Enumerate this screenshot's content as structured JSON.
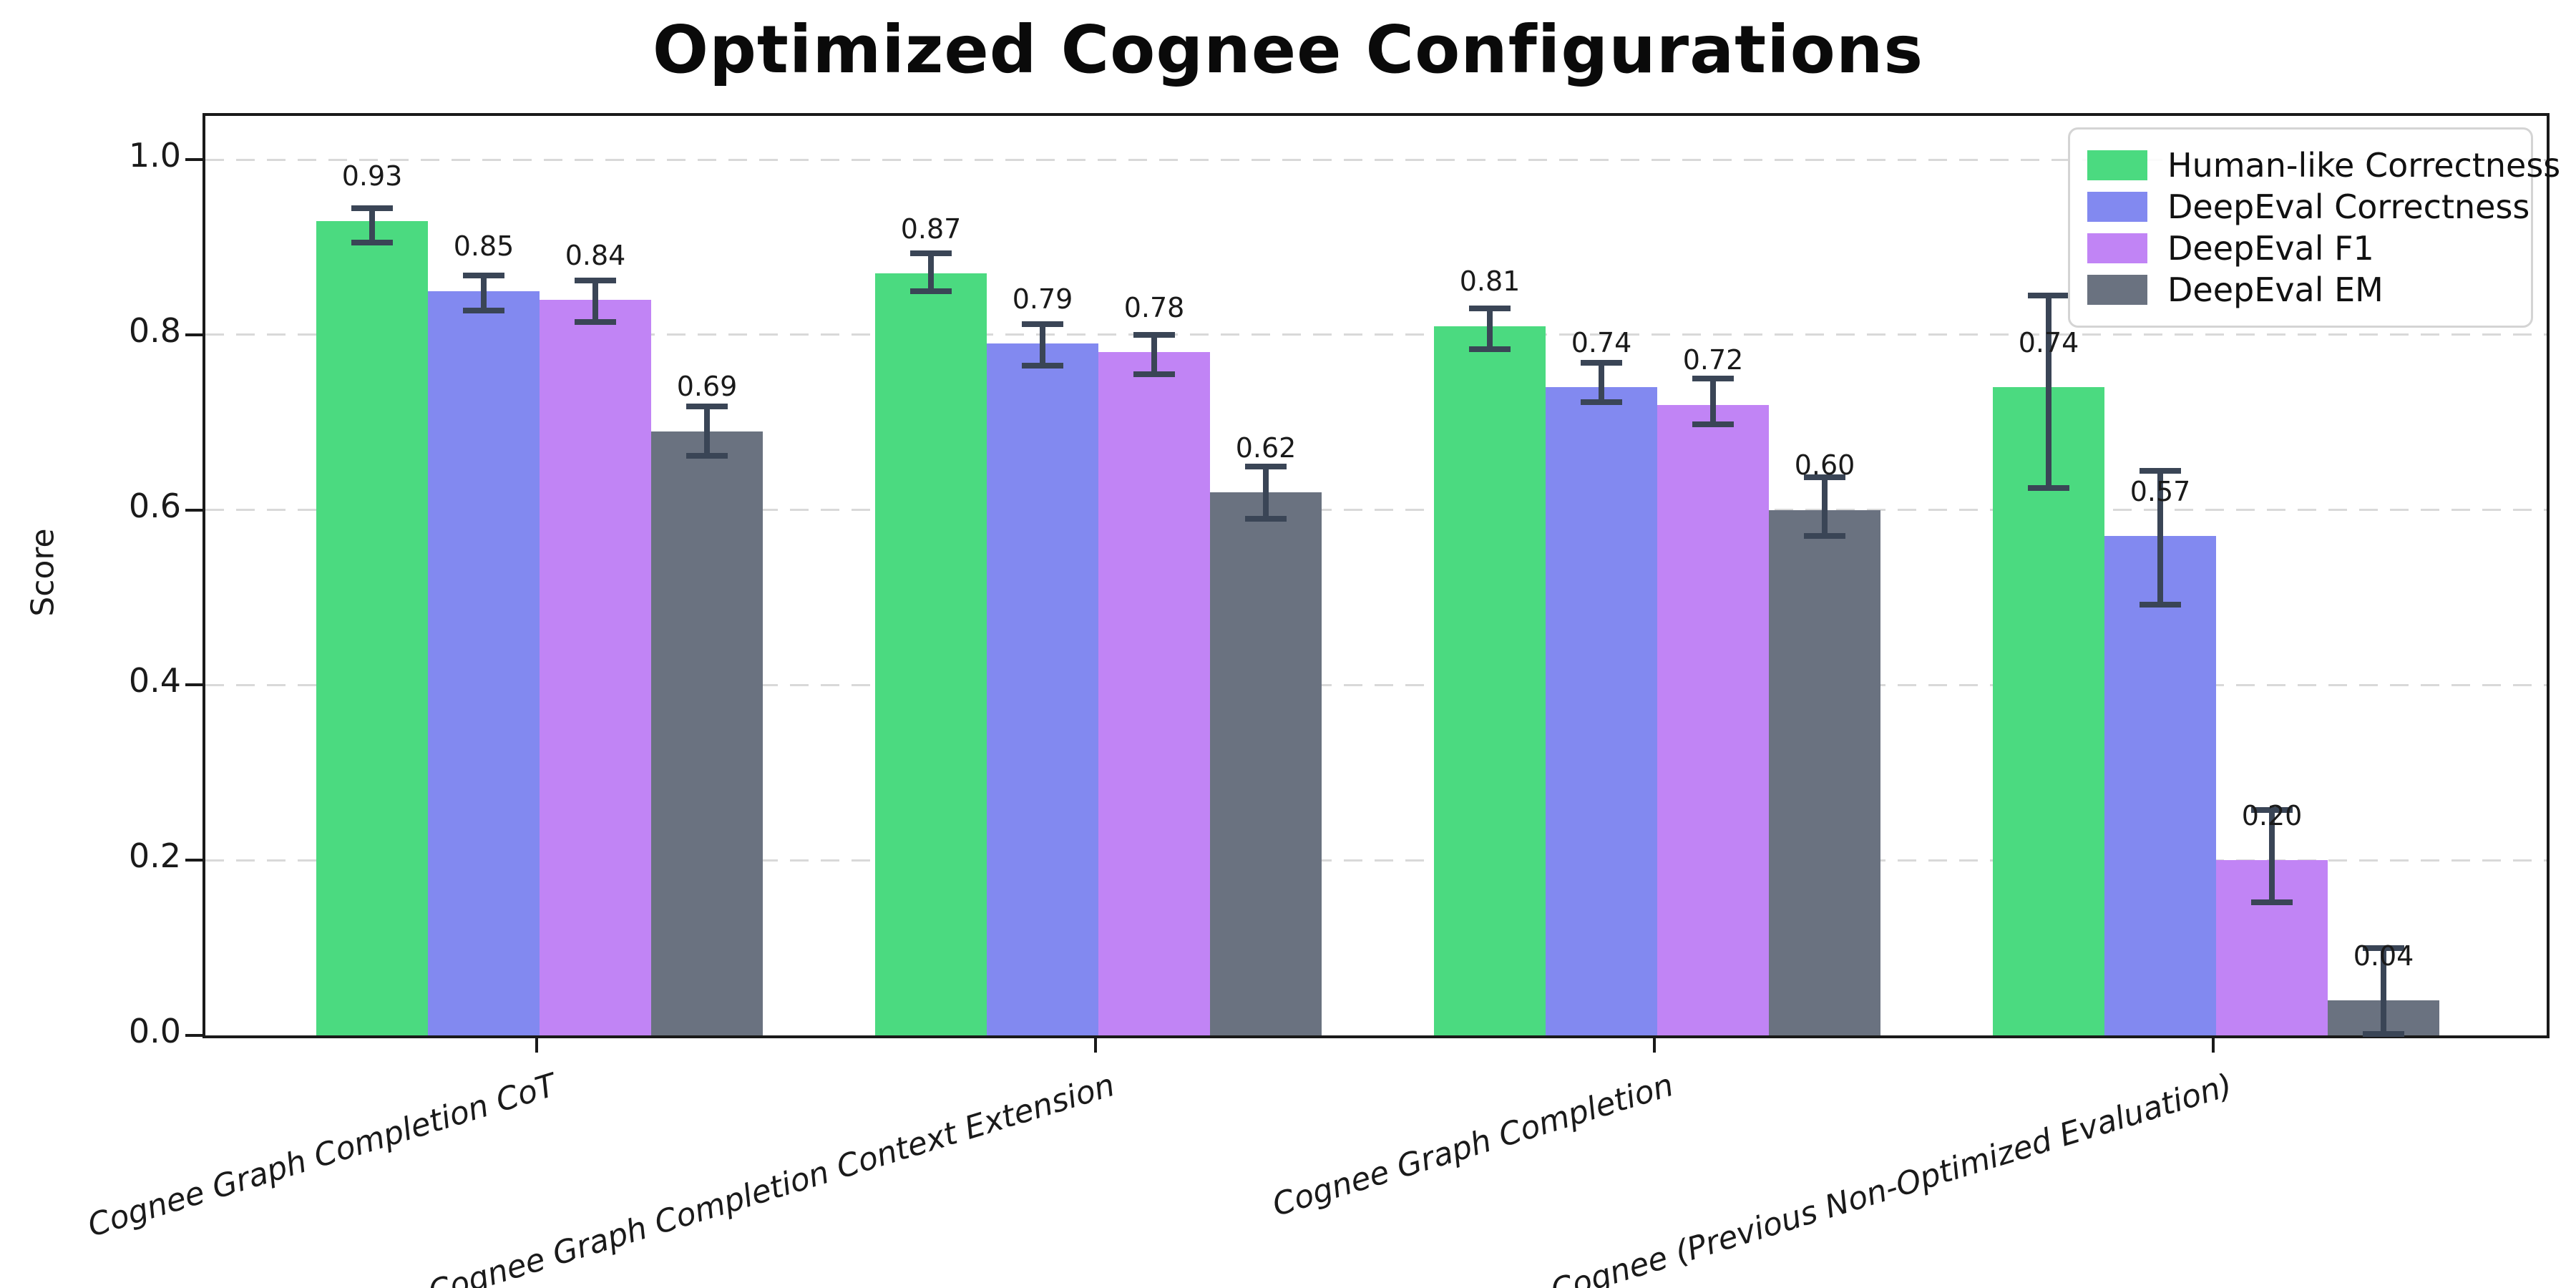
{
  "chart_data": {
    "type": "bar",
    "title": "Optimized Cognee Configurations",
    "ylabel": "Score",
    "categories": [
      "Cognee Graph Completion CoT",
      "Cognee Graph Completion Context Extension",
      "Cognee Graph Completion",
      "Cognee (Previous Non-Optimized Evaluation)"
    ],
    "series": [
      {
        "name": "Human-like Correctness",
        "color": "#4bda80",
        "values": [
          0.93,
          0.87,
          0.81,
          0.74
        ],
        "err_low": [
          0.905,
          0.85,
          0.784,
          0.625
        ],
        "err_high": [
          0.945,
          0.893,
          0.83,
          0.845
        ]
      },
      {
        "name": "DeepEval Correctness",
        "color": "#8289f0",
        "values": [
          0.85,
          0.79,
          0.74,
          0.57
        ],
        "err_low": [
          0.828,
          0.765,
          0.723,
          0.492
        ],
        "err_high": [
          0.868,
          0.812,
          0.768,
          0.645
        ]
      },
      {
        "name": "DeepEval F1",
        "color": "#c184f5",
        "values": [
          0.84,
          0.78,
          0.72,
          0.2
        ],
        "err_low": [
          0.815,
          0.755,
          0.698,
          0.152
        ],
        "err_high": [
          0.862,
          0.8,
          0.75,
          0.257
        ]
      },
      {
        "name": "DeepEval EM",
        "color": "#6a7280",
        "values": [
          0.69,
          0.62,
          0.6,
          0.04
        ],
        "err_low": [
          0.662,
          0.59,
          0.57,
          0.002
        ],
        "err_high": [
          0.718,
          0.65,
          0.637,
          0.1
        ]
      }
    ],
    "yticks": [
      "0.0",
      "0.2",
      "0.4",
      "0.6",
      "0.8",
      "1.0"
    ],
    "ylim": [
      0,
      1.05
    ],
    "grid": "horizontal-dashed",
    "grid_color": "#d9d9d9",
    "error_bar_color": "#3a4556",
    "legend_position": "upper-right",
    "value_label_format": "2-decimals"
  }
}
